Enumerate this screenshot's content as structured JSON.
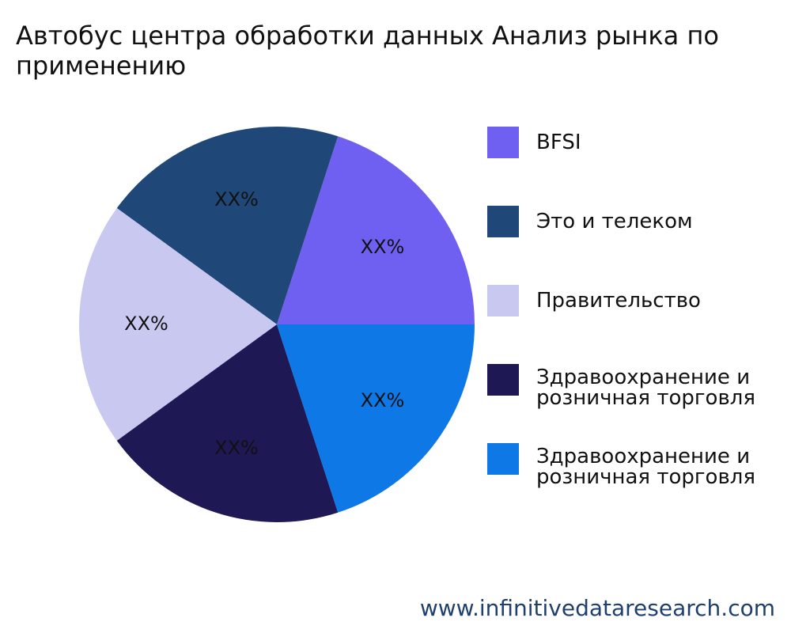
{
  "title": "Автобус центра обработки данных Анализ рынка по применению",
  "watermark": "www.infinitivedataresearch.com",
  "chart_data": {
    "type": "pie",
    "title": "Автобус центра обработки данных Анализ рынка по применению",
    "slice_label": "XX%",
    "legend_placement": "right",
    "series": [
      {
        "name": "BFSI",
        "value": 20,
        "color": "#7060f2"
      },
      {
        "name": "Это и телеком",
        "value": 20,
        "color": "#1f4878"
      },
      {
        "name": "Правительство",
        "value": 20,
        "color": "#c9c8f0"
      },
      {
        "name": "Здравоохранение и розничная торговля",
        "value": 20,
        "color": "#1e1855"
      },
      {
        "name": "Здравоохранение и розничная торговля",
        "value": 20,
        "color": "#0d78e6"
      }
    ]
  }
}
